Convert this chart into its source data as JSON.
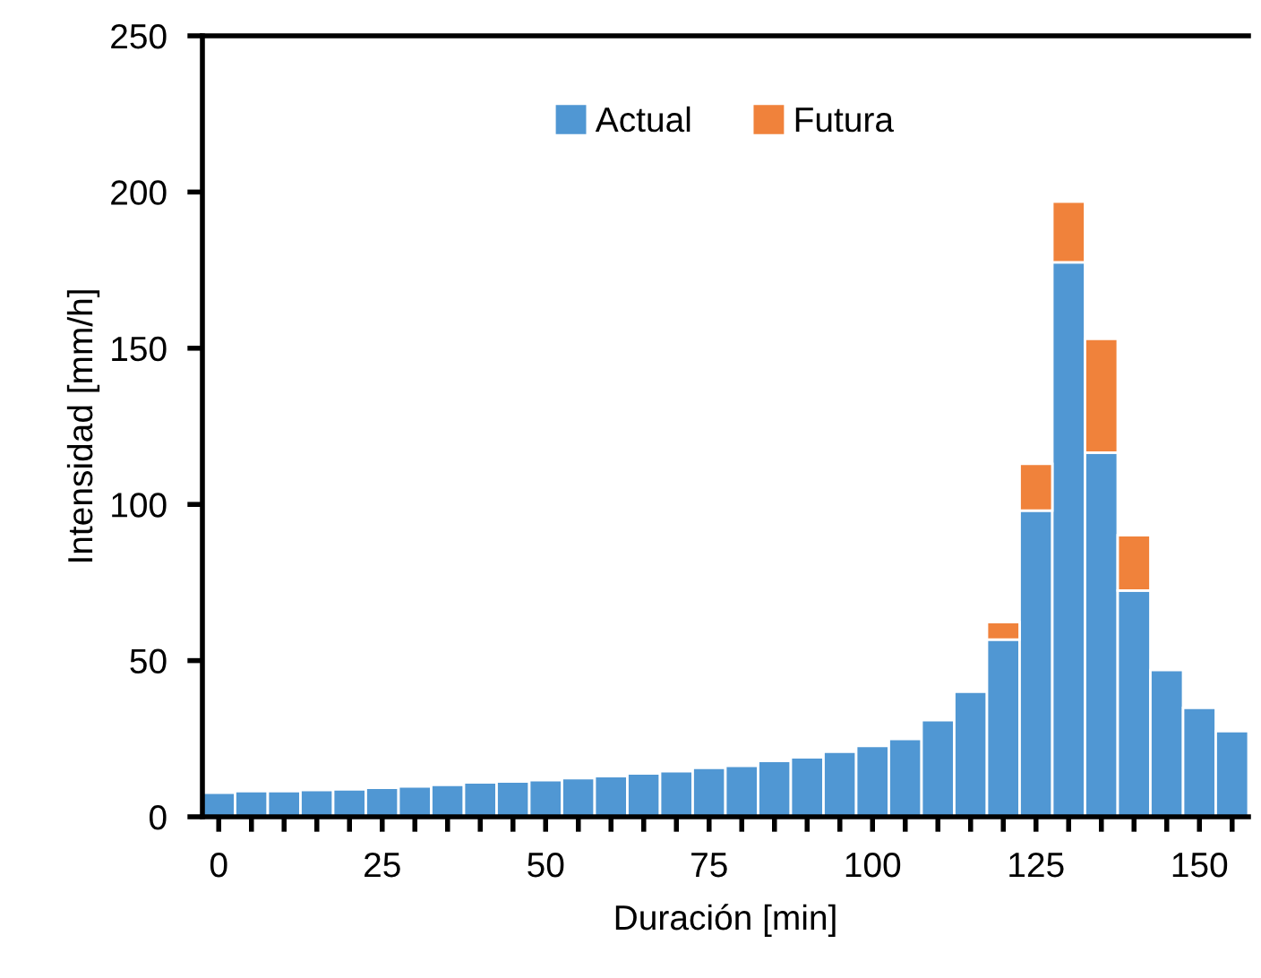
{
  "chart_data": {
    "type": "bar",
    "stacked": true,
    "xlabel": "Duración [min]",
    "ylabel": "Intensidad [mm/h]",
    "x": [
      0,
      5,
      10,
      15,
      20,
      25,
      30,
      35,
      40,
      45,
      50,
      55,
      60,
      65,
      70,
      75,
      80,
      85,
      90,
      95,
      100,
      105,
      110,
      115,
      120,
      125,
      130,
      135,
      140,
      145,
      150,
      155
    ],
    "series": [
      {
        "name": "Actual",
        "color": "#5097d3",
        "values": [
          7.7,
          8.2,
          8.2,
          8.6,
          8.8,
          9.3,
          9.7,
          10.2,
          11.0,
          11.3,
          11.7,
          12.4,
          13.0,
          13.9,
          14.6,
          15.7,
          16.3,
          17.9,
          19.0,
          20.8,
          22.7,
          24.9,
          30.9,
          40.0,
          56.7,
          98.0,
          177.5,
          116.6,
          72.4,
          47.0,
          34.9,
          27.4
        ]
      },
      {
        "name": "Futura",
        "color": "#f0823b",
        "values": [
          null,
          null,
          null,
          null,
          null,
          null,
          null,
          null,
          null,
          null,
          null,
          null,
          null,
          null,
          null,
          null,
          null,
          null,
          null,
          null,
          null,
          null,
          null,
          null,
          5.6,
          15.0,
          19.4,
          36.4,
          17.7,
          null,
          null,
          null
        ]
      }
    ],
    "xlim": [
      -2.5,
      157.5
    ],
    "xticks": [
      0,
      {
        "value": 5,
        "label": null
      },
      {
        "value": 10,
        "label": null
      },
      {
        "value": 15,
        "label": null
      },
      {
        "value": 20,
        "label": null
      },
      25,
      {
        "value": 30,
        "label": null
      },
      {
        "value": 35,
        "label": null
      },
      {
        "value": 40,
        "label": null
      },
      {
        "value": 45,
        "label": null
      },
      50,
      {
        "value": 55,
        "label": null
      },
      {
        "value": 60,
        "label": null
      },
      {
        "value": 65,
        "label": null
      },
      {
        "value": 70,
        "label": null
      },
      75,
      {
        "value": 80,
        "label": null
      },
      {
        "value": 85,
        "label": null
      },
      {
        "value": 90,
        "label": null
      },
      {
        "value": 95,
        "label": null
      },
      100,
      {
        "value": 105,
        "label": null
      },
      {
        "value": 110,
        "label": null
      },
      {
        "value": 115,
        "label": null
      },
      {
        "value": 120,
        "label": null
      },
      125,
      {
        "value": 130,
        "label": null
      },
      {
        "value": 135,
        "label": null
      },
      {
        "value": 140,
        "label": null
      },
      {
        "value": 145,
        "label": null
      },
      150,
      {
        "value": 155,
        "label": null
      }
    ],
    "ylim": [
      0,
      250
    ],
    "yticks": [
      0,
      50,
      100,
      150,
      200,
      250
    ],
    "grid": false,
    "legend": "top"
  }
}
